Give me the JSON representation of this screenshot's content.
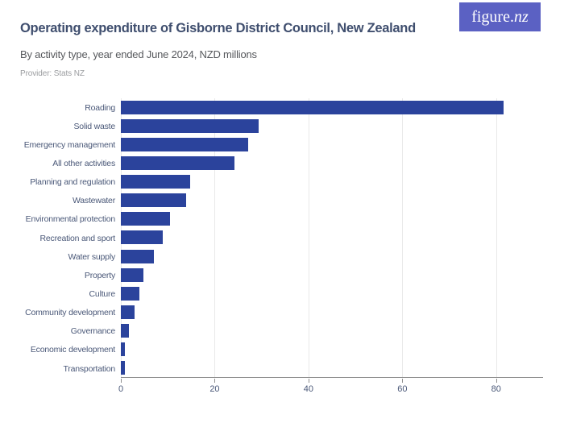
{
  "header": {
    "title": "Operating expenditure of Gisborne District Council, New Zealand",
    "subtitle": "By activity type, year ended June 2024, NZD millions",
    "provider": "Provider: Stats NZ"
  },
  "logo": {
    "text_main": "figure.",
    "text_suffix": "nz"
  },
  "colors": {
    "bar": "#2b439c",
    "logo_bg": "#5b61c3",
    "title": "#3f4e6e",
    "subtitle": "#56585c",
    "provider": "#9b9da0",
    "category_label": "#4a5878",
    "tick_label": "#4a5878",
    "gridline": "#e9e9e9",
    "axis_line": "#8f8f8f"
  },
  "chart_data": {
    "type": "bar",
    "orientation": "horizontal",
    "title": "Operating expenditure of Gisborne District Council, New Zealand",
    "subtitle": "By activity type, year ended June 2024, NZD millions",
    "provider": "Stats NZ",
    "unit": "NZD millions",
    "categories": [
      "Roading",
      "Solid waste",
      "Emergency management",
      "All other activities",
      "Planning and regulation",
      "Wastewater",
      "Environmental protection",
      "Recreation and sport",
      "Water supply",
      "Property",
      "Culture",
      "Community development",
      "Governance",
      "Economic development",
      "Transportation"
    ],
    "values": [
      81.5,
      29.4,
      27.1,
      24.2,
      14.7,
      13.9,
      10.4,
      8.9,
      7.1,
      4.8,
      4.0,
      3.0,
      1.8,
      0.9,
      0.8
    ],
    "xlabel": "",
    "ylabel": "",
    "xlim": [
      0,
      90
    ],
    "xticks": [
      0,
      20,
      40,
      60,
      80
    ],
    "grid": true,
    "legend": false
  }
}
